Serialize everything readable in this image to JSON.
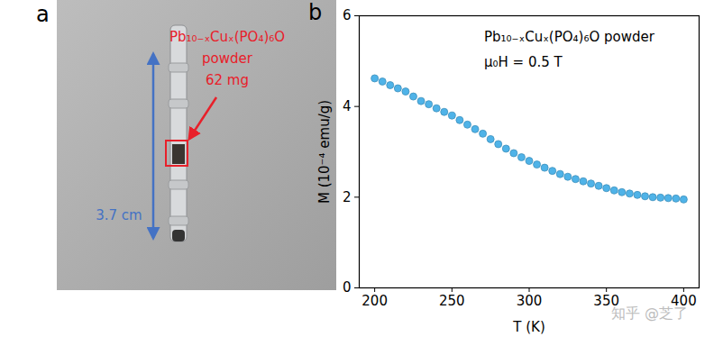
{
  "photo_panel": {
    "panel_label": "a",
    "sample_label": [
      "Pb₁₀₋ₓCuₓ(PO₄)₆O",
      "powder",
      "62 mg"
    ],
    "scale_bar": "3.7 cm"
  },
  "chart_data": {
    "type": "scatter",
    "panel_label": "b",
    "annotations": [
      "Pb₁₀₋ₓCuₓ(PO₄)₆O powder",
      "μ₀H = 0.5 T"
    ],
    "x_label": "T (K)",
    "y_label": "M (10⁻⁴ emu/g)",
    "x": [
      200,
      205,
      210,
      215,
      220,
      225,
      230,
      235,
      240,
      245,
      250,
      255,
      260,
      265,
      270,
      275,
      280,
      285,
      290,
      295,
      300,
      305,
      310,
      315,
      320,
      325,
      330,
      335,
      340,
      345,
      350,
      355,
      360,
      365,
      370,
      375,
      380,
      385,
      390,
      395,
      400
    ],
    "values": [
      4.62,
      4.55,
      4.47,
      4.4,
      4.33,
      4.22,
      4.12,
      4.05,
      3.96,
      3.88,
      3.8,
      3.7,
      3.6,
      3.5,
      3.4,
      3.28,
      3.17,
      3.07,
      2.97,
      2.88,
      2.8,
      2.72,
      2.65,
      2.58,
      2.51,
      2.45,
      2.4,
      2.35,
      2.3,
      2.25,
      2.2,
      2.15,
      2.11,
      2.08,
      2.05,
      2.02,
      2.0,
      1.99,
      1.98,
      1.97,
      1.95
    ],
    "xlim": [
      190,
      410
    ],
    "ylim": [
      0,
      6
    ],
    "xticks": [
      200,
      250,
      300,
      350,
      400
    ],
    "yticks": [
      0,
      2,
      4,
      6
    ],
    "color": "#4fb3e8",
    "marker": "circle",
    "grid": false
  },
  "watermark": "知乎 @芝了"
}
